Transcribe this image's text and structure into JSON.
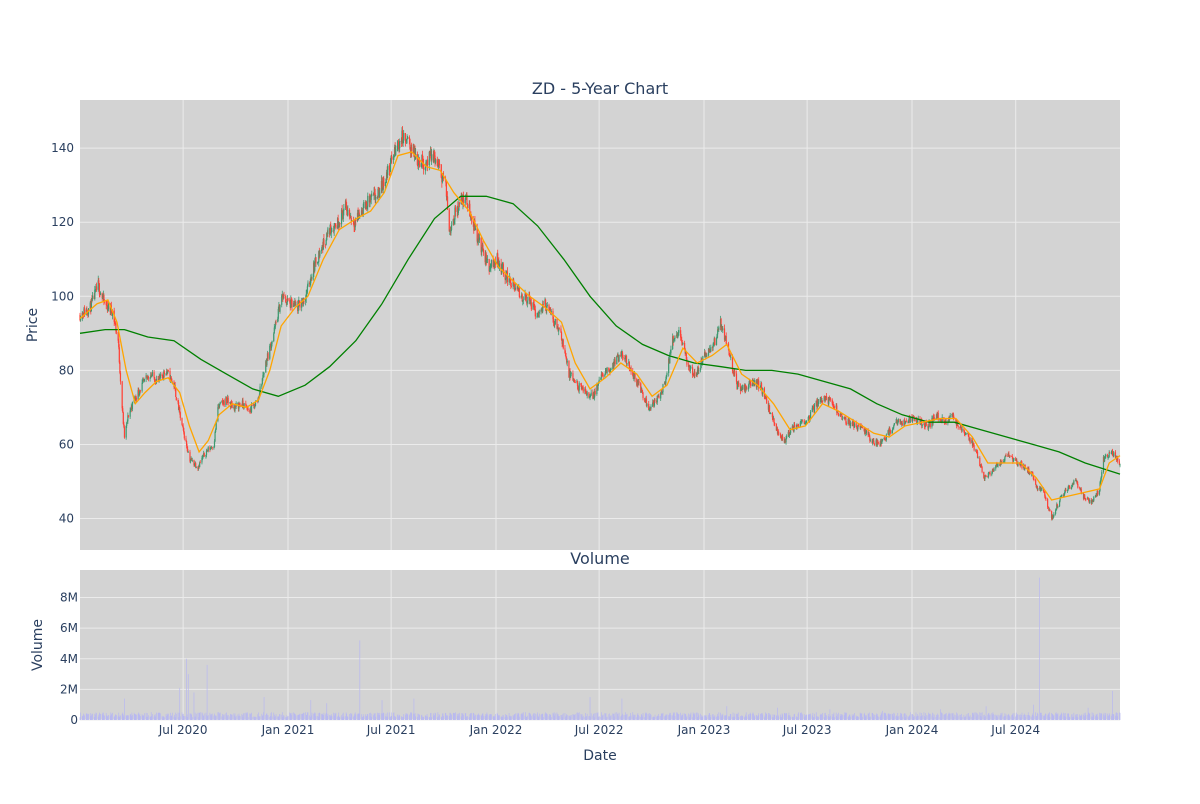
{
  "chart_data": [
    {
      "type": "candlestick",
      "title": "ZD - 5-Year Chart",
      "ylabel": "Price",
      "ylim": [
        31.5,
        153
      ],
      "yticks": [
        40,
        60,
        80,
        100,
        120,
        140
      ],
      "xlim": [
        "2020-01-02",
        "2024-12-31"
      ],
      "grid": true,
      "legend": "none",
      "colors": {
        "up": "#3D9970",
        "down": "#FF4136",
        "ma_short": "#FFA500",
        "ma_long": "#008000",
        "plot_bg": "#D3D3D3",
        "grid": "#EBEBEB"
      },
      "price_path": [
        [
          "2020-01-02",
          95
        ],
        [
          "2020-01-20",
          97
        ],
        [
          "2020-02-03",
          103
        ],
        [
          "2020-02-14",
          98
        ],
        [
          "2020-02-28",
          96
        ],
        [
          "2020-03-09",
          88
        ],
        [
          "2020-03-16",
          70
        ],
        [
          "2020-03-20",
          62
        ],
        [
          "2020-03-27",
          68
        ],
        [
          "2020-04-06",
          72
        ],
        [
          "2020-04-20",
          76
        ],
        [
          "2020-05-04",
          79
        ],
        [
          "2020-05-18",
          77
        ],
        [
          "2020-06-01",
          80
        ],
        [
          "2020-06-15",
          76
        ],
        [
          "2020-06-29",
          65
        ],
        [
          "2020-07-13",
          56
        ],
        [
          "2020-07-27",
          54
        ],
        [
          "2020-08-10",
          58
        ],
        [
          "2020-08-24",
          60
        ],
        [
          "2020-08-31",
          70
        ],
        [
          "2020-09-14",
          72
        ],
        [
          "2020-09-28",
          70
        ],
        [
          "2020-10-12",
          71
        ],
        [
          "2020-10-26",
          69
        ],
        [
          "2020-11-09",
          72
        ],
        [
          "2020-11-23",
          82
        ],
        [
          "2020-12-07",
          90
        ],
        [
          "2020-12-21",
          100
        ],
        [
          "2021-01-04",
          98
        ],
        [
          "2021-01-18",
          97
        ],
        [
          "2021-02-01",
          100
        ],
        [
          "2021-02-15",
          108
        ],
        [
          "2021-03-01",
          113
        ],
        [
          "2021-03-15",
          118
        ],
        [
          "2021-03-29",
          120
        ],
        [
          "2021-04-12",
          124
        ],
        [
          "2021-04-26",
          120
        ],
        [
          "2021-05-10",
          123
        ],
        [
          "2021-05-24",
          126
        ],
        [
          "2021-06-07",
          127
        ],
        [
          "2021-06-21",
          132
        ],
        [
          "2021-07-05",
          138
        ],
        [
          "2021-07-19",
          143
        ],
        [
          "2021-08-02",
          141
        ],
        [
          "2021-08-16",
          137
        ],
        [
          "2021-08-30",
          136
        ],
        [
          "2021-09-13",
          138
        ],
        [
          "2021-09-27",
          133
        ],
        [
          "2021-10-04",
          131
        ],
        [
          "2021-10-11",
          118
        ],
        [
          "2021-10-25",
          124
        ],
        [
          "2021-11-08",
          127
        ],
        [
          "2021-11-22",
          120
        ],
        [
          "2021-12-06",
          113
        ],
        [
          "2021-12-20",
          108
        ],
        [
          "2022-01-03",
          110
        ],
        [
          "2022-01-17",
          106
        ],
        [
          "2022-01-31",
          103
        ],
        [
          "2022-02-14",
          100
        ],
        [
          "2022-02-28",
          99
        ],
        [
          "2022-03-14",
          95
        ],
        [
          "2022-03-28",
          98
        ],
        [
          "2022-04-11",
          94
        ],
        [
          "2022-04-25",
          90
        ],
        [
          "2022-05-09",
          79
        ],
        [
          "2022-05-23",
          76
        ],
        [
          "2022-06-06",
          74
        ],
        [
          "2022-06-20",
          73
        ],
        [
          "2022-07-04",
          78
        ],
        [
          "2022-07-18",
          80
        ],
        [
          "2022-08-01",
          83
        ],
        [
          "2022-08-15",
          84
        ],
        [
          "2022-08-29",
          79
        ],
        [
          "2022-09-12",
          75
        ],
        [
          "2022-09-26",
          70
        ],
        [
          "2022-10-10",
          72
        ],
        [
          "2022-10-24",
          76
        ],
        [
          "2022-11-07",
          88
        ],
        [
          "2022-11-21",
          90
        ],
        [
          "2022-12-05",
          80
        ],
        [
          "2022-12-19",
          79
        ],
        [
          "2023-01-02",
          84
        ],
        [
          "2023-01-16",
          86
        ],
        [
          "2023-01-30",
          93
        ],
        [
          "2023-02-13",
          86
        ],
        [
          "2023-02-27",
          76
        ],
        [
          "2023-03-13",
          75
        ],
        [
          "2023-03-27",
          77
        ],
        [
          "2023-04-10",
          76
        ],
        [
          "2023-04-24",
          70
        ],
        [
          "2023-05-08",
          64
        ],
        [
          "2023-05-22",
          61
        ],
        [
          "2023-06-05",
          64
        ],
        [
          "2023-06-19",
          66
        ],
        [
          "2023-07-03",
          67
        ],
        [
          "2023-07-17",
          71
        ],
        [
          "2023-07-31",
          73
        ],
        [
          "2023-08-14",
          71
        ],
        [
          "2023-08-28",
          68
        ],
        [
          "2023-09-11",
          66
        ],
        [
          "2023-09-25",
          65
        ],
        [
          "2023-10-09",
          64
        ],
        [
          "2023-10-23",
          61
        ],
        [
          "2023-11-06",
          60
        ],
        [
          "2023-11-20",
          63
        ],
        [
          "2023-12-04",
          66
        ],
        [
          "2023-12-18",
          66
        ],
        [
          "2024-01-02",
          67
        ],
        [
          "2024-01-16",
          66
        ],
        [
          "2024-01-30",
          65
        ],
        [
          "2024-02-13",
          68
        ],
        [
          "2024-02-27",
          66
        ],
        [
          "2024-03-12",
          68
        ],
        [
          "2024-03-26",
          64
        ],
        [
          "2024-04-09",
          62
        ],
        [
          "2024-04-23",
          58
        ],
        [
          "2024-05-07",
          51
        ],
        [
          "2024-05-21",
          53
        ],
        [
          "2024-06-04",
          55
        ],
        [
          "2024-06-18",
          57
        ],
        [
          "2024-07-02",
          55
        ],
        [
          "2024-07-16",
          54
        ],
        [
          "2024-07-30",
          52
        ],
        [
          "2024-08-05",
          49
        ],
        [
          "2024-08-19",
          47
        ],
        [
          "2024-09-02",
          40
        ],
        [
          "2024-09-16",
          45
        ],
        [
          "2024-09-30",
          48
        ],
        [
          "2024-10-14",
          50
        ],
        [
          "2024-10-28",
          46
        ],
        [
          "2024-11-11",
          44
        ],
        [
          "2024-11-25",
          48
        ],
        [
          "2024-12-02",
          56
        ],
        [
          "2024-12-16",
          58
        ],
        [
          "2024-12-31",
          55
        ]
      ],
      "ma_short": [
        [
          "2020-01-02",
          94
        ],
        [
          "2020-02-01",
          98
        ],
        [
          "2020-02-20",
          99
        ],
        [
          "2020-03-07",
          93
        ],
        [
          "2020-03-23",
          80
        ],
        [
          "2020-04-08",
          71
        ],
        [
          "2020-04-25",
          74
        ],
        [
          "2020-05-15",
          77
        ],
        [
          "2020-06-05",
          78
        ],
        [
          "2020-06-25",
          74
        ],
        [
          "2020-07-12",
          65
        ],
        [
          "2020-07-29",
          58
        ],
        [
          "2020-08-14",
          61
        ],
        [
          "2020-09-02",
          68
        ],
        [
          "2020-09-25",
          71
        ],
        [
          "2020-10-20",
          70
        ],
        [
          "2020-11-10",
          72
        ],
        [
          "2020-11-30",
          80
        ],
        [
          "2020-12-20",
          92
        ],
        [
          "2021-01-14",
          97
        ],
        [
          "2021-02-05",
          100
        ],
        [
          "2021-03-04",
          110
        ],
        [
          "2021-04-01",
          118
        ],
        [
          "2021-05-01",
          121
        ],
        [
          "2021-05-26",
          123
        ],
        [
          "2021-06-19",
          128
        ],
        [
          "2021-07-13",
          138
        ],
        [
          "2021-08-06",
          139
        ],
        [
          "2021-09-01",
          135
        ],
        [
          "2021-09-25",
          134
        ],
        [
          "2021-10-19",
          128
        ],
        [
          "2021-11-15",
          123
        ],
        [
          "2021-12-10",
          115
        ],
        [
          "2022-01-05",
          108
        ],
        [
          "2022-02-01",
          104
        ],
        [
          "2022-03-01",
          100
        ],
        [
          "2022-03-28",
          97
        ],
        [
          "2022-04-26",
          93
        ],
        [
          "2022-05-20",
          82
        ],
        [
          "2022-06-15",
          75
        ],
        [
          "2022-07-12",
          78
        ],
        [
          "2022-08-08",
          82
        ],
        [
          "2022-09-05",
          79
        ],
        [
          "2022-10-02",
          73
        ],
        [
          "2022-10-28",
          76
        ],
        [
          "2022-11-25",
          86
        ],
        [
          "2022-12-20",
          82
        ],
        [
          "2023-01-15",
          84
        ],
        [
          "2023-02-10",
          87
        ],
        [
          "2023-03-08",
          79
        ],
        [
          "2023-04-05",
          76
        ],
        [
          "2023-05-03",
          71
        ],
        [
          "2023-06-01",
          64
        ],
        [
          "2023-06-28",
          65
        ],
        [
          "2023-07-28",
          71
        ],
        [
          "2023-08-25",
          69
        ],
        [
          "2023-09-25",
          66
        ],
        [
          "2023-10-26",
          63
        ],
        [
          "2023-11-22",
          62
        ],
        [
          "2023-12-20",
          65
        ],
        [
          "2024-01-19",
          66
        ],
        [
          "2024-02-19",
          67
        ],
        [
          "2024-03-18",
          67
        ],
        [
          "2024-04-16",
          62
        ],
        [
          "2024-05-13",
          55
        ],
        [
          "2024-06-10",
          55
        ],
        [
          "2024-07-10",
          55
        ],
        [
          "2024-08-06",
          51
        ],
        [
          "2024-09-02",
          45
        ],
        [
          "2024-09-30",
          46
        ],
        [
          "2024-10-28",
          47
        ],
        [
          "2024-11-25",
          48
        ],
        [
          "2024-12-12",
          55
        ],
        [
          "2024-12-31",
          57
        ]
      ],
      "ma_long": [
        [
          "2020-01-02",
          90
        ],
        [
          "2020-02-15",
          91
        ],
        [
          "2020-03-20",
          91
        ],
        [
          "2020-04-30",
          89
        ],
        [
          "2020-06-15",
          88
        ],
        [
          "2020-08-01",
          83
        ],
        [
          "2020-09-15",
          79
        ],
        [
          "2020-10-31",
          75
        ],
        [
          "2020-12-15",
          73
        ],
        [
          "2021-01-31",
          76
        ],
        [
          "2021-03-15",
          81
        ],
        [
          "2021-04-30",
          88
        ],
        [
          "2021-06-15",
          98
        ],
        [
          "2021-07-31",
          110
        ],
        [
          "2021-09-15",
          121
        ],
        [
          "2021-10-31",
          127
        ],
        [
          "2021-12-15",
          127
        ],
        [
          "2022-01-31",
          125
        ],
        [
          "2022-03-15",
          119
        ],
        [
          "2022-04-30",
          110
        ],
        [
          "2022-06-15",
          100
        ],
        [
          "2022-07-31",
          92
        ],
        [
          "2022-09-15",
          87
        ],
        [
          "2022-10-31",
          84
        ],
        [
          "2022-12-15",
          82
        ],
        [
          "2023-01-31",
          81
        ],
        [
          "2023-03-15",
          80
        ],
        [
          "2023-04-30",
          80
        ],
        [
          "2023-06-15",
          79
        ],
        [
          "2023-07-31",
          77
        ],
        [
          "2023-09-15",
          75
        ],
        [
          "2023-10-31",
          71
        ],
        [
          "2023-12-15",
          68
        ],
        [
          "2024-01-31",
          66
        ],
        [
          "2024-03-15",
          66
        ],
        [
          "2024-04-30",
          64
        ],
        [
          "2024-06-15",
          62
        ],
        [
          "2024-07-31",
          60
        ],
        [
          "2024-09-15",
          58
        ],
        [
          "2024-10-31",
          55
        ],
        [
          "2024-12-31",
          52
        ]
      ]
    },
    {
      "type": "bar",
      "title": "Volume",
      "ylabel": "Volume",
      "xlabel": "Date",
      "ylim": [
        0,
        9800000
      ],
      "yticks": [
        0,
        2000000,
        4000000,
        6000000,
        8000000
      ],
      "ytick_labels": [
        "0",
        "2M",
        "4M",
        "6M",
        "8M"
      ],
      "bar_color": "#B8B8F0",
      "baseline": 300000,
      "spikes": [
        [
          "2020-03-01",
          1300000
        ],
        [
          "2020-03-20",
          1400000
        ],
        [
          "2020-05-10",
          900000
        ],
        [
          "2020-06-25",
          2100000
        ],
        [
          "2020-07-07",
          4000000
        ],
        [
          "2020-07-10",
          3000000
        ],
        [
          "2020-07-20",
          1800000
        ],
        [
          "2020-08-12",
          3600000
        ],
        [
          "2020-11-20",
          1500000
        ],
        [
          "2021-01-10",
          1200000
        ],
        [
          "2021-02-10",
          1300000
        ],
        [
          "2021-03-10",
          1100000
        ],
        [
          "2021-05-07",
          5200000
        ],
        [
          "2021-05-09",
          2400000
        ],
        [
          "2021-06-15",
          1300000
        ],
        [
          "2021-06-20",
          1500000
        ],
        [
          "2021-08-10",
          1400000
        ],
        [
          "2021-10-10",
          1500000
        ],
        [
          "2022-01-15",
          900000
        ],
        [
          "2022-05-15",
          1200000
        ],
        [
          "2022-06-15",
          1500000
        ],
        [
          "2022-08-10",
          1400000
        ],
        [
          "2022-11-05",
          900000
        ],
        [
          "2023-02-10",
          900000
        ],
        [
          "2023-05-10",
          800000
        ],
        [
          "2023-08-10",
          700000
        ],
        [
          "2023-11-10",
          600000
        ],
        [
          "2024-02-20",
          700000
        ],
        [
          "2024-05-10",
          900000
        ],
        [
          "2024-08-01",
          1000000
        ],
        [
          "2024-08-12",
          9300000
        ],
        [
          "2024-11-05",
          800000
        ],
        [
          "2024-12-18",
          1900000
        ]
      ],
      "x_axis": {
        "label": "Date",
        "ticks": [
          [
            "2020-07-01",
            "Jul 2020"
          ],
          [
            "2021-01-01",
            "Jan 2021"
          ],
          [
            "2021-07-01",
            "Jul 2021"
          ],
          [
            "2022-01-01",
            "Jan 2022"
          ],
          [
            "2022-07-01",
            "Jul 2022"
          ],
          [
            "2023-01-01",
            "Jan 2023"
          ],
          [
            "2023-07-01",
            "Jul 2023"
          ],
          [
            "2024-01-01",
            "Jan 2024"
          ],
          [
            "2024-07-01",
            "Jul 2024"
          ]
        ]
      }
    }
  ]
}
